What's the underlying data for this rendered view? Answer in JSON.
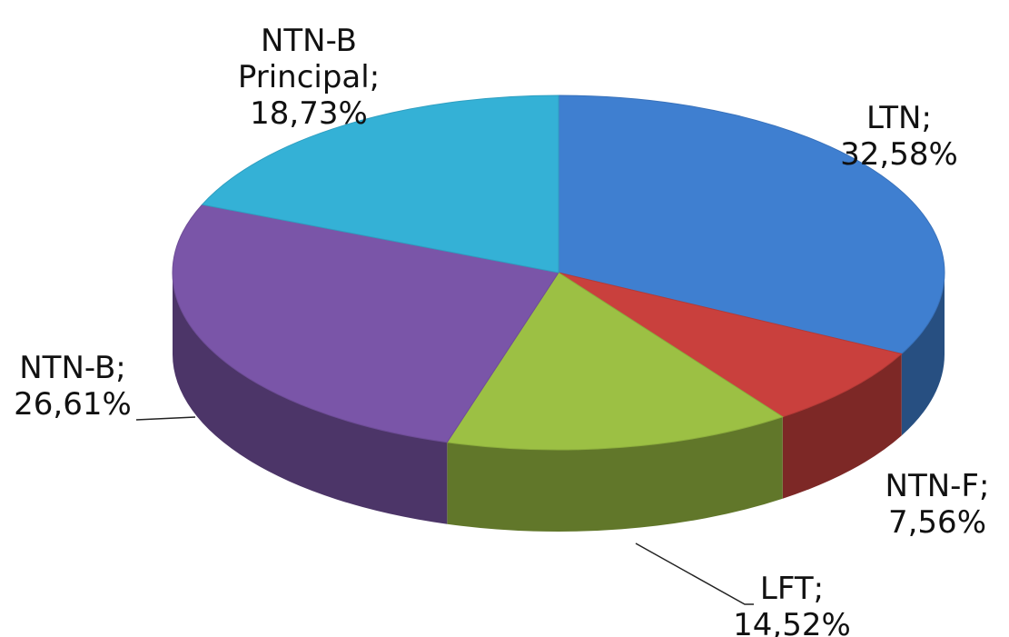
{
  "chart_data": {
    "type": "pie",
    "categories": [
      "LTN",
      "NTN-F",
      "LFT",
      "NTN-B",
      "NTN-B Principal"
    ],
    "values": [
      32.58,
      7.56,
      14.52,
      26.61,
      18.73
    ],
    "value_labels": [
      "32,58%",
      "7,56%",
      "14,52%",
      "26,61%",
      "18,73%"
    ],
    "label_separator": ";",
    "colors": [
      "#3f7fd0",
      "#c9403d",
      "#9cc044",
      "#7a55a8",
      "#34b1d6"
    ]
  }
}
